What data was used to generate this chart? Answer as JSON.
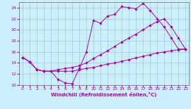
{
  "xlabel": "Windchill (Refroidissement éolien,°C)",
  "bg_color": "#cceeff",
  "line_color": "#aa00aa",
  "grid_color": "#99cccc",
  "xlim": [
    -0.5,
    23.5
  ],
  "ylim": [
    10,
    25
  ],
  "xticks": [
    0,
    1,
    2,
    3,
    4,
    5,
    6,
    7,
    8,
    9,
    10,
    11,
    12,
    13,
    14,
    15,
    16,
    17,
    18,
    19,
    20,
    21,
    22,
    23
  ],
  "yticks": [
    10,
    12,
    14,
    16,
    18,
    20,
    22,
    24
  ],
  "line1_x": [
    0,
    1,
    2,
    3,
    4,
    5,
    6,
    7,
    8,
    9,
    10,
    11,
    12,
    13,
    14,
    15,
    16,
    17,
    18,
    19,
    20,
    21,
    22,
    23
  ],
  "line1_y": [
    15.0,
    14.2,
    12.8,
    12.5,
    12.5,
    11.0,
    10.4,
    10.2,
    13.0,
    16.0,
    21.7,
    21.2,
    22.5,
    22.8,
    24.2,
    24.0,
    23.8,
    24.8,
    23.5,
    22.0,
    20.5,
    18.5,
    16.5,
    16.5
  ],
  "line2_x": [
    0,
    1,
    2,
    3,
    4,
    5,
    6,
    7,
    8,
    9,
    10,
    11,
    12,
    13,
    14,
    15,
    16,
    17,
    18,
    19,
    20,
    21,
    22,
    23
  ],
  "line2_y": [
    15.0,
    14.2,
    12.8,
    12.5,
    12.5,
    12.8,
    13.0,
    13.2,
    13.5,
    14.0,
    14.8,
    15.5,
    16.2,
    17.0,
    17.8,
    18.5,
    19.2,
    20.0,
    20.8,
    21.5,
    22.0,
    20.5,
    18.5,
    16.5
  ],
  "line3_x": [
    0,
    1,
    2,
    3,
    4,
    5,
    6,
    7,
    8,
    9,
    10,
    11,
    12,
    13,
    14,
    15,
    16,
    17,
    18,
    19,
    20,
    21,
    22,
    23
  ],
  "line3_y": [
    15.0,
    14.2,
    12.8,
    12.5,
    12.5,
    12.5,
    12.5,
    12.5,
    12.8,
    13.0,
    13.2,
    13.5,
    13.8,
    14.0,
    14.3,
    14.6,
    14.9,
    15.2,
    15.5,
    15.8,
    16.0,
    16.2,
    16.4,
    16.5
  ]
}
